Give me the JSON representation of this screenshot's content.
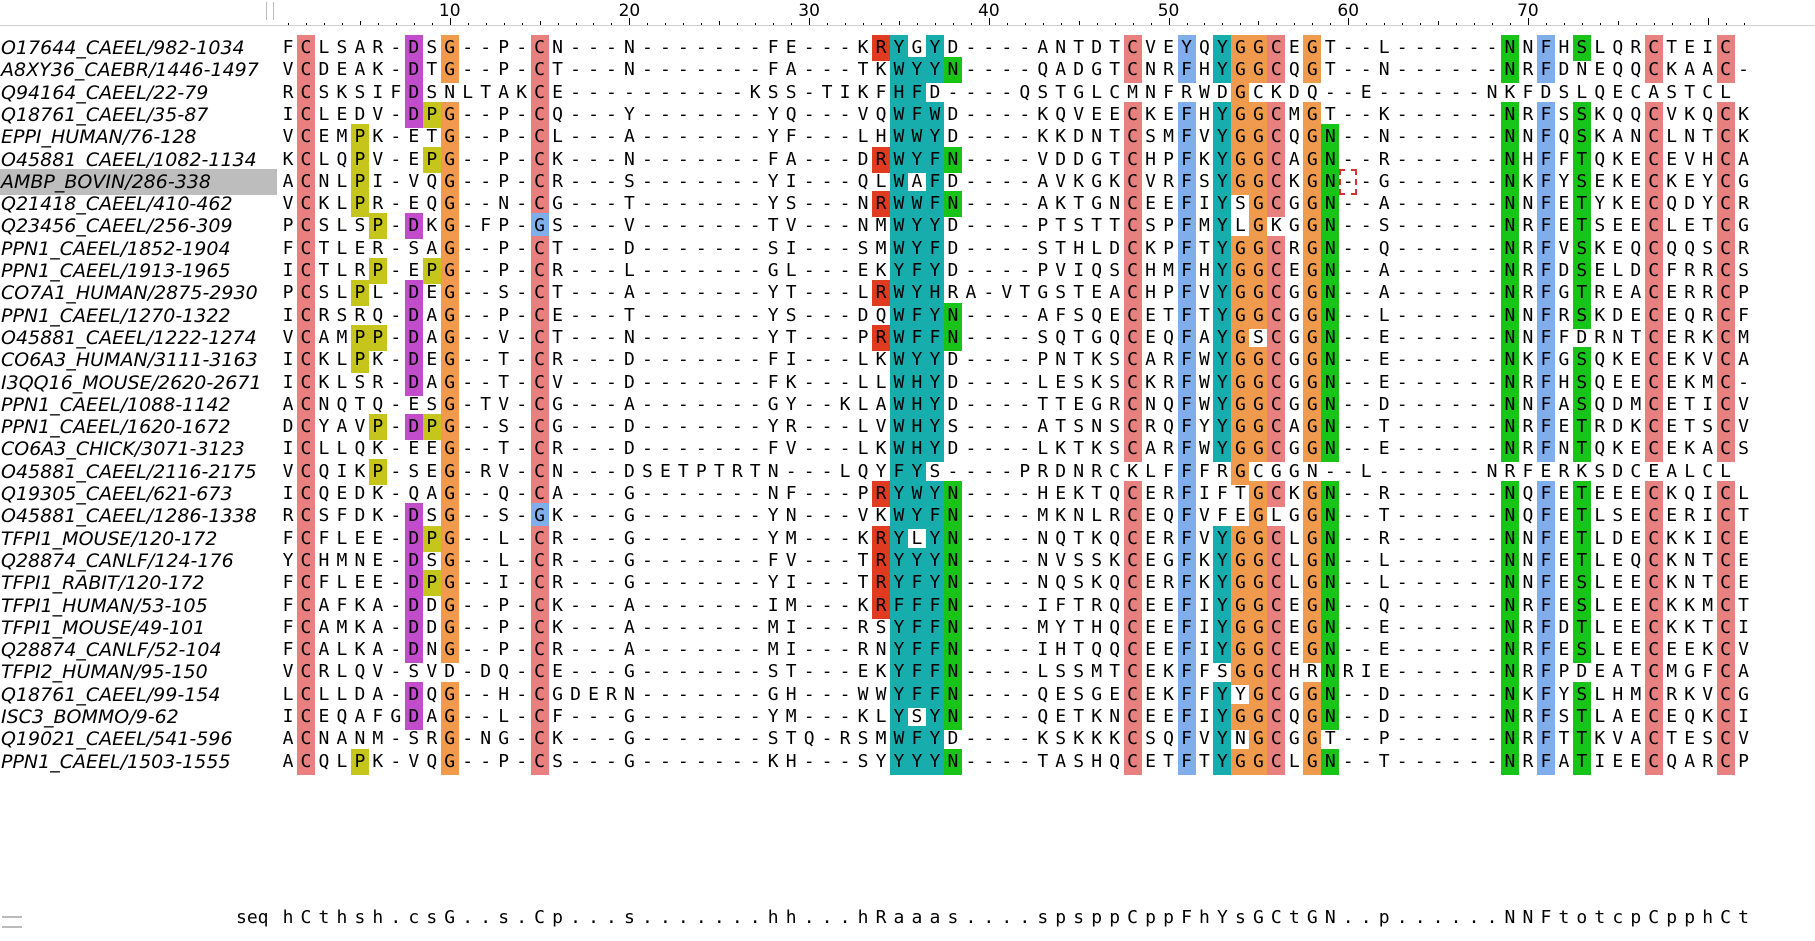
{
  "ruler": {
    "labels": [
      "10",
      "20",
      "30",
      "40",
      "50",
      "60",
      "70"
    ]
  },
  "colors": {
    "k-red": "#e8807f",
    "k-orange": "#ef9a4c",
    "k-blue": "#80aeea",
    "k-cyan": "#17adad",
    "k-green": "#18c418",
    "k-magenta": "#c34ccc",
    "k-yellow": "#c6c51b",
    "k-darkred": "#e03a20"
  },
  "alignment": {
    "selected_index": 6,
    "cursor": {
      "row": 6,
      "column": 60
    },
    "sequences": [
      {
        "name": "O17644_CAEEL/982-1034",
        "seq": "FCLSAR-DSG--P-CN---N-------FE---KRYGYD----ANTDTCVEYQYGGCEGT--L------NNFHSLQRCTEIC"
      },
      {
        "name": "A8XY36_CAEBR/1446-1497",
        "seq": "VCDEAK-DTG--P-CT---N-------FA---TKWYYN----QADGTCNRFHYGGCQGT--N------NRFDNEQQCKAAC-"
      },
      {
        "name": "Q94164_CAEEL/22-79",
        "seq": "RCSKSIFDSNLTAKCE----------KSS-TIKFHFD----QSTGLCMNFRWDGCKDQ--E------NKFDSLQECASTCL"
      },
      {
        "name": "Q18761_CAEEL/35-87",
        "seq": "ICLEDV-DPG--P-CQ---Y-------YQ---VQWFWD----KQVEECKEFHYGGCMGT--K------NRFSSKQQCVKQCK"
      },
      {
        "name": "EPPI_HUMAN/76-128",
        "seq": "VCEMPK-ETG--P-CL---A-------YF---LHWWYD----KKDNTCSMFVYGGCQGN--N------NNFQSKANCLNTCK"
      },
      {
        "name": "O45881_CAEEL/1082-1134",
        "seq": "KCLQPV-EPG--P-CK---N-------FA---DRWYFN----VDDGTCHPFKYGGCAGN--R------NHFFTQKECEVHCA"
      },
      {
        "name": "AMBP_BOVIN/286-338",
        "seq": "ACNLPI-VQG--P-CR---S-------YI---QLWAFD----AVKGKCVRFSYGGCKGN--G------NKFYSEKECKEYCG"
      },
      {
        "name": "Q21418_CAEEL/410-462",
        "seq": "VCKLPR-EQG--N-CG---T-------YS---NRWWFN----AKTGNCEEFIYSGCGGN--A------NNFETYKECQDYCR"
      },
      {
        "name": "Q23456_CAEEL/256-309",
        "seq": "PCSLSP-DKG-FP-GS---V-------TV---NMWYYD----PTSTTCSPFMYLGKGGN--S------NRFETSEECLETCG"
      },
      {
        "name": "PPN1_CAEEL/1852-1904",
        "seq": "FCTLER-SAG--P-CT---D-------SI---SMWYFD----STHLDCKPFTYGGCRGN--Q------NRFVSKEQCQQSCR"
      },
      {
        "name": "PPN1_CAEEL/1913-1965",
        "seq": "ICTLRP-EPG--P-CR---L-------GL---EKYFYD----PVIQSCHMFHYGGCEGN--A------NRFDSELDCFRRCS"
      },
      {
        "name": "CO7A1_HUMAN/2875-2930",
        "seq": "PCSLPL-DEG--S-CT---A-------YT---LRWYHRA-VTGSTEACHPFVYGGCGGN--A------NRFGTREACERRCP"
      },
      {
        "name": "PPN1_CAEEL/1270-1322",
        "seq": "ICRSRQ-DAG--P-CE---T-------YS---DQWFYN----AFSQECETFTYGGCGGN--L------NNFRSKDECEQRCF"
      },
      {
        "name": "O45881_CAEEL/1222-1274",
        "seq": "VCAMPP-DAG--V-CT---N-------YT---PRWFFN----SQTGQCEQFAYGSCGGN--E------NNFFDRNTCERKCM"
      },
      {
        "name": "CO6A3_HUMAN/3111-3163",
        "seq": "ICKLPK-DEG--T-CR---D-------FI---LKWYYD----PNTKSCARFWYGGCGGN--E------NKFGSQKECEKVCA"
      },
      {
        "name": "I3QQ16_MOUSE/2620-2671",
        "seq": "ICKLSR-DAG--T-CV---D-------FK---LLWHYD----LESKSCKRFWYGGCGGN--E------NRFHSQEECEKMC-"
      },
      {
        "name": "PPN1_CAEEL/1088-1142",
        "seq": "ACNQTQ-ESG-TV-CG---A-------GY--KLAWHYD----TTEGRCNQFWYGGCGGN--D------NNFASQDMCETICV"
      },
      {
        "name": "PPN1_CAEEL/1620-1672",
        "seq": "DCYAVP-DPG--S-CG---D-------YR---LVWHYS----ATSNSCRQFYYGGCAGN--T------NRFETRDKCETSCV"
      },
      {
        "name": "CO6A3_CHICK/3071-3123",
        "seq": "ICLLQK-EEG--T-CR---D-------FV---LKWHYD----LKTKSCARFWYGGCGGN--E------NRFNTQKECEKACS"
      },
      {
        "name": "O45881_CAEEL/2116-2175",
        "seq": "VCQIKP-SEG-RV-CN---DSETPTRTN---LQYFYS----PRDNRCKLFFFRGCGGN--L------NRFERKSDCEALCL"
      },
      {
        "name": "Q19305_CAEEL/621-673",
        "seq": "ICQEDK-QAG--Q-CA---G-------NF---PRYWYN----HEKTQCERFIFTGCKGN--R------NQFETEEECKQICL"
      },
      {
        "name": "O45881_CAEEL/1286-1338",
        "seq": "RCSFDK-DSG--S-GK---G-------YN---VKWYFN----MKNLRCEQFVFEGLGGN--T------NQFETLSECERICT"
      },
      {
        "name": "TFPI1_MOUSE/120-172",
        "seq": "FCFLEE-DPG--L-CR---G-------YM---KRYLYN----NQTKQCERFVYGGCLGN--R------NNFETLDECKKICE"
      },
      {
        "name": "Q28874_CANLF/124-176",
        "seq": "YCHMNE-DSG--L-CR---G-------FV---TRYYYN----NVSSKCEGFKYGGCLGN--L------NNFETLEQCKNTCE"
      },
      {
        "name": "TFPI1_RABIT/120-172",
        "seq": "FCFLEE-DPG--I-CR---G-------YI---TRYFYN----NQSKQCERFKYGGCLGN--L------NNFESLEECKNTCE"
      },
      {
        "name": "TFPI1_HUMAN/53-105",
        "seq": "FCAFKA-DDG--P-CK---A-------IM---KRFFFN----IFTRQCEEFIYGGCEGN--Q------NRFESLEECKKMCT"
      },
      {
        "name": "TFPI1_MOUSE/49-101",
        "seq": "FCAMKA-DDG--P-CK---A-------MI---RSYFFN----MYTHQCEEFIYGGCEGN--E------NRFDTLEECKKTCI"
      },
      {
        "name": "Q28874_CANLF/52-104",
        "seq": "FCALKA-DNG--P-CR---A-------MI---RNYFFN----IHTQQCEEFIYGGCEGN--E------NRFESLEECEEKCV"
      },
      {
        "name": "TFPI2_HUMAN/95-150",
        "seq": "VCRLQV-SVD-DQ-CE---G-------ST---EKYFFN----LSSMTCEKFFSGGCHRNRIE------NRFPDEATCMGFCA"
      },
      {
        "name": "Q18761_CAEEL/99-154",
        "seq": "LCLLDA-DQG--H-CGDERN-------GH---WWYFFN----QESGECEKFFYYGCGGN--D------NKFYSLHMCRKVCG"
      },
      {
        "name": "ISC3_BOMMO/9-62",
        "seq": "ICEQAFGDAG--L-CF---G-------YM---KLYSYN----QETKNCEEFIYGGCQGN--D------NRFSTLAECEQKCI"
      },
      {
        "name": "Q19021_CAEEL/541-596",
        "seq": "ACNANM-SRG-NG-CK---G-------STQ-RSMWFYD----KSKKKCSQFVYNGCGGT--P------NRFTTKVACTESCV"
      },
      {
        "name": "PPN1_CAEEL/1503-1555",
        "seq": "ACQLPK-VQG--P-CS---G-------KH---SYYYYN----TASHQCETFTYGGCLGN--T------NRFATIEECQARCP"
      }
    ]
  },
  "consensus": {
    "label": "seq",
    "seq": "hCthsh.csG..s.Cp...s.......hh...hRaaas....spsppCppFhYsGCtGN..p......NNFtotcpCpphCt"
  }
}
